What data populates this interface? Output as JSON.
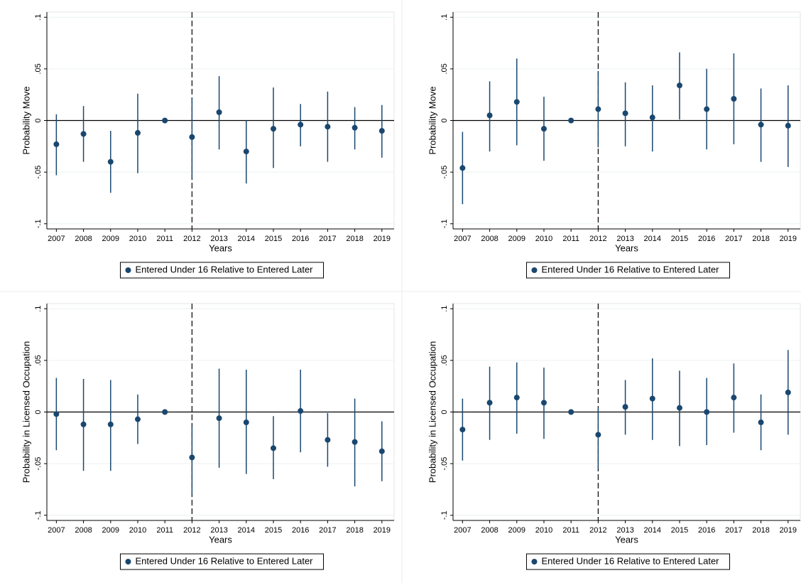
{
  "chart_data": [
    {
      "type": "errorbar",
      "y_label": "Probability Move",
      "x_label": "Years",
      "x": [
        2007,
        2008,
        2009,
        2010,
        2011,
        2012,
        2013,
        2014,
        2015,
        2016,
        2017,
        2018,
        2019
      ],
      "series": [
        {
          "name": "Entered Under 16 Relative to Entered Later",
          "color": "#1a476f",
          "values": [
            -0.023,
            -0.013,
            -0.04,
            -0.012,
            0,
            -0.016,
            0.008,
            -0.03,
            -0.008,
            -0.004,
            -0.006,
            -0.007,
            -0.01
          ],
          "lower": [
            -0.053,
            -0.04,
            -0.07,
            -0.051,
            0,
            -0.056,
            -0.028,
            -0.061,
            -0.046,
            -0.025,
            -0.04,
            -0.028,
            -0.036
          ],
          "upper": [
            0.006,
            0.014,
            -0.01,
            0.026,
            0,
            0.022,
            0.043,
            0.0,
            0.032,
            0.016,
            0.028,
            0.013,
            0.015
          ]
        }
      ],
      "xlim": [
        2006.65,
        2019.45
      ],
      "xticks": [
        2007,
        2008,
        2009,
        2010,
        2011,
        2012,
        2013,
        2014,
        2015,
        2016,
        2017,
        2018,
        2019
      ],
      "ylim": [
        -0.105,
        0.105
      ],
      "yticks": [
        {
          "value": -0.1,
          "label": "-.1"
        },
        {
          "value": -0.05,
          "label": "-.05"
        },
        0,
        {
          "value": 0.05,
          "label": ".05"
        },
        {
          "value": 0.1,
          "label": ".1"
        }
      ],
      "grid": true,
      "vline": 2012,
      "hline": 0,
      "legend": "bottom"
    },
    {
      "type": "errorbar",
      "y_label": "Probability Move",
      "x_label": "Years",
      "x": [
        2007,
        2008,
        2009,
        2010,
        2011,
        2012,
        2013,
        2014,
        2015,
        2016,
        2017,
        2018,
        2019
      ],
      "series": [
        {
          "name": "Entered Under 16 Relative to Entered Later",
          "color": "#1a476f",
          "values": [
            -0.046,
            0.005,
            0.018,
            -0.008,
            0,
            0.011,
            0.007,
            0.003,
            0.034,
            0.011,
            0.021,
            -0.004,
            -0.005
          ],
          "lower": [
            -0.081,
            -0.03,
            -0.024,
            -0.039,
            0,
            -0.026,
            -0.025,
            -0.03,
            0.001,
            -0.028,
            -0.023,
            -0.04,
            -0.045
          ],
          "upper": [
            -0.011,
            0.038,
            0.06,
            0.023,
            0,
            0.048,
            0.037,
            0.034,
            0.066,
            0.05,
            0.065,
            0.031,
            0.034
          ]
        }
      ],
      "xlim": [
        2006.65,
        2019.45
      ],
      "xticks": [
        2007,
        2008,
        2009,
        2010,
        2011,
        2012,
        2013,
        2014,
        2015,
        2016,
        2017,
        2018,
        2019
      ],
      "ylim": [
        -0.105,
        0.105
      ],
      "yticks": [
        {
          "value": -0.1,
          "label": "-.1"
        },
        {
          "value": -0.05,
          "label": "-.05"
        },
        0,
        {
          "value": 0.05,
          "label": ".05"
        },
        {
          "value": 0.1,
          "label": ".1"
        }
      ],
      "grid": true,
      "vline": 2012,
      "hline": 0,
      "legend": "bottom"
    },
    {
      "type": "errorbar",
      "y_label": "Probability in Licensed Occupation",
      "x_label": "Years",
      "x": [
        2007,
        2008,
        2009,
        2010,
        2011,
        2012,
        2013,
        2014,
        2015,
        2016,
        2017,
        2018,
        2019
      ],
      "series": [
        {
          "name": "Entered Under 16 Relative to Entered Later",
          "color": "#1a476f",
          "values": [
            -0.002,
            -0.012,
            -0.012,
            -0.007,
            0,
            -0.044,
            -0.006,
            -0.01,
            -0.035,
            0.001,
            -0.027,
            -0.029,
            -0.038
          ],
          "lower": [
            -0.037,
            -0.057,
            -0.057,
            -0.031,
            0,
            -0.08,
            -0.054,
            -0.06,
            -0.065,
            -0.039,
            -0.053,
            -0.072,
            -0.067
          ],
          "upper": [
            0.033,
            0.032,
            0.031,
            0.017,
            0,
            -0.014,
            0.042,
            0.041,
            -0.004,
            0.041,
            -0.001,
            0.013,
            -0.009
          ]
        }
      ],
      "xlim": [
        2006.65,
        2019.45
      ],
      "xticks": [
        2007,
        2008,
        2009,
        2010,
        2011,
        2012,
        2013,
        2014,
        2015,
        2016,
        2017,
        2018,
        2019
      ],
      "ylim": [
        -0.105,
        0.105
      ],
      "yticks": [
        {
          "value": -0.1,
          "label": "-.1"
        },
        {
          "value": -0.05,
          "label": "-.05"
        },
        0,
        {
          "value": 0.05,
          "label": ".05"
        },
        {
          "value": 0.1,
          "label": ".1"
        }
      ],
      "grid": true,
      "vline": 2012,
      "hline": 0,
      "legend": "bottom"
    },
    {
      "type": "errorbar",
      "y_label": "Probability in Licensed Occupation",
      "x_label": "Years",
      "x": [
        2007,
        2008,
        2009,
        2010,
        2011,
        2012,
        2013,
        2014,
        2015,
        2016,
        2017,
        2018,
        2019
      ],
      "series": [
        {
          "name": "Entered Under 16 Relative to Entered Later",
          "color": "#1a476f",
          "values": [
            -0.017,
            0.009,
            0.014,
            0.009,
            0,
            -0.022,
            0.005,
            0.013,
            0.004,
            0.0,
            0.014,
            -0.01,
            0.019
          ],
          "lower": [
            -0.047,
            -0.027,
            -0.021,
            -0.026,
            0,
            -0.055,
            -0.022,
            -0.027,
            -0.033,
            -0.032,
            -0.02,
            -0.037,
            -0.022
          ],
          "upper": [
            0.013,
            0.044,
            0.048,
            0.043,
            0,
            0.004,
            0.031,
            0.052,
            0.04,
            0.033,
            0.047,
            0.017,
            0.06
          ]
        }
      ],
      "xlim": [
        2006.65,
        2019.45
      ],
      "xticks": [
        2007,
        2008,
        2009,
        2010,
        2011,
        2012,
        2013,
        2014,
        2015,
        2016,
        2017,
        2018,
        2019
      ],
      "ylim": [
        -0.105,
        0.105
      ],
      "yticks": [
        {
          "value": -0.1,
          "label": "-.1"
        },
        {
          "value": -0.05,
          "label": "-.05"
        },
        0,
        {
          "value": 0.05,
          "label": ".05"
        },
        {
          "value": 0.1,
          "label": ".1"
        }
      ],
      "grid": true,
      "vline": 2012,
      "hline": 0,
      "legend": "bottom"
    }
  ]
}
